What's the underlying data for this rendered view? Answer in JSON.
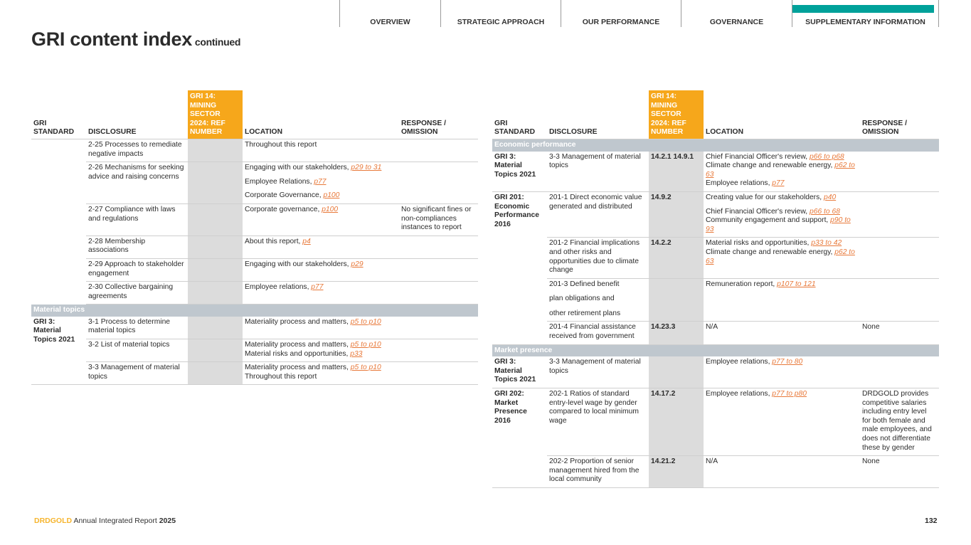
{
  "nav": {
    "items": [
      {
        "label": "OVERVIEW",
        "active": false
      },
      {
        "label": "STRATEGIC APPROACH",
        "active": false
      },
      {
        "label": "OUR PERFORMANCE",
        "active": false
      },
      {
        "label": "GOVERNANCE",
        "active": false
      },
      {
        "label": "SUPPLEMENTARY INFORMATION",
        "active": true
      }
    ],
    "active_color": "#00a19a"
  },
  "title": {
    "main": "GRI content index",
    "suffix": "continued"
  },
  "colors": {
    "ref_header": "#f6a71b",
    "ref_column": "#dcdcdc",
    "section": "#bfc7ce",
    "link": "#e8793a"
  },
  "columns": [
    "GRI STANDARD",
    "DISCLOSURE",
    "GRI 14: MINING SECTOR 2024: REF NUMBER",
    "LOCATION",
    "RESPONSE / OMISSION"
  ],
  "left_table": {
    "rows": [
      {
        "std": "",
        "disclosure": [
          "2-25 Processes to remediate negative impacts"
        ],
        "ref": "",
        "location": [
          [
            {
              "t": "Throughout this report"
            }
          ]
        ],
        "response": ""
      },
      {
        "disclosure": [
          "2-26 Mechanisms for seeking advice and raising concerns"
        ],
        "ref": "",
        "location": [
          [
            {
              "t": "Engaging with our stakeholders, "
            },
            {
              "l": "p29 to 31"
            }
          ],
          [
            {
              "t": "Employee Relations, "
            },
            {
              "l": "p77"
            }
          ],
          [
            {
              "t": "Corporate Governance, "
            },
            {
              "l": "p100"
            }
          ]
        ],
        "response": ""
      },
      {
        "disclosure": [
          "2-27 Compliance with laws and regulations"
        ],
        "ref": "",
        "location": [
          [
            {
              "t": "Corporate governance, "
            },
            {
              "l": "p100"
            }
          ]
        ],
        "response": "No significant fines or non-compliances instances to report"
      },
      {
        "disclosure": [
          "2-28 Membership associations"
        ],
        "ref": "",
        "location": [
          [
            {
              "t": "About this report, "
            },
            {
              "l": "p4"
            }
          ]
        ],
        "response": ""
      },
      {
        "disclosure": [
          "2-29 Approach to stakeholder engagement"
        ],
        "ref": "",
        "location": [
          [
            {
              "t": "Engaging with our stakeholders, "
            },
            {
              "l": "p29"
            }
          ]
        ],
        "response": ""
      },
      {
        "disclosure": [
          "2-30 Collective bargaining agreements"
        ],
        "ref": "",
        "location": [
          [
            {
              "t": "Employee relations, "
            },
            {
              "l": "p77"
            }
          ]
        ],
        "response": ""
      },
      {
        "section": "Material topics"
      },
      {
        "std": "GRI 3: Material Topics 2021",
        "span": 3,
        "disclosure": [
          "3-1 Process to determine material topics"
        ],
        "ref": "",
        "location": [
          [
            {
              "t": "Materiality process and matters, "
            },
            {
              "l": "p5 to p10"
            }
          ]
        ],
        "response": ""
      },
      {
        "disclosure": [
          "3-2 List of material topics"
        ],
        "ref": "",
        "location": [
          [
            {
              "t": "Materiality process and matters, "
            },
            {
              "l": "p5 to p10"
            },
            {
              "br": true
            },
            {
              "t": "Material risks and opportunities, "
            },
            {
              "l": "p33"
            }
          ]
        ],
        "response": ""
      },
      {
        "disclosure": [
          "3-3 Management of material topics"
        ],
        "ref": "",
        "location": [
          [
            {
              "t": "Materiality process and matters, "
            },
            {
              "l": "p5 to p10"
            },
            {
              "br": true
            },
            {
              "t": "Throughout this report"
            }
          ]
        ],
        "response": ""
      }
    ]
  },
  "right_table": {
    "rows": [
      {
        "section": "Economic performance"
      },
      {
        "std": "GRI 3: Material Topics 2021",
        "span": 1,
        "disclosure": [
          "3-3 Management of material topics"
        ],
        "ref": "14.2.1 14.9.1",
        "location": [
          [
            {
              "t": "Chief Financial Officer's review, "
            },
            {
              "l": "p66 to p68"
            },
            {
              "br": true
            },
            {
              "t": "Climate change and renewable energy, "
            },
            {
              "l": "p62 to 63"
            },
            {
              "br": true
            },
            {
              "t": "Employee relations, "
            },
            {
              "l": "p77"
            }
          ]
        ],
        "response": ""
      },
      {
        "std": "GRI 201: Economic Performance 2016",
        "span": 4,
        "disclosure": [
          "201-1 Direct economic value generated and distributed"
        ],
        "ref": "14.9.2",
        "location": [
          [
            {
              "t": "Creating value for our stakeholders, "
            },
            {
              "l": "p40"
            }
          ],
          [
            {
              "t": "Chief Financial Officer's review, "
            },
            {
              "l": "p66 to 68"
            },
            {
              "br": true
            },
            {
              "t": "Community engagement and support, "
            },
            {
              "l": "p90 to 93"
            }
          ]
        ],
        "response": ""
      },
      {
        "disclosure": [
          "201-2 Financial implications and other risks and opportunities due to climate change"
        ],
        "ref": "14.2.2",
        "location": [
          [
            {
              "t": "Material risks and opportunities, "
            },
            {
              "l": "p33 to 42"
            },
            {
              "br": true
            },
            {
              "t": "Climate change and renewable energy, "
            },
            {
              "l": "p62 to 63"
            }
          ]
        ],
        "response": ""
      },
      {
        "disclosure": [
          "201-3 Defined benefit",
          "plan obligations and",
          "other retirement plans"
        ],
        "wide": true,
        "ref": "",
        "location": [
          [
            {
              "t": "Remuneration report, "
            },
            {
              "l": "p107 to 121"
            }
          ]
        ],
        "response": ""
      },
      {
        "disclosure": [
          "201-4 Financial assistance received from government"
        ],
        "ref": "14.23.3",
        "location": [
          [
            {
              "t": "N/A"
            }
          ]
        ],
        "response": "None"
      },
      {
        "section": "Market presence"
      },
      {
        "std": "GRI 3: Material Topics 2021",
        "span": 1,
        "disclosure": [
          "3-3 Management of material topics"
        ],
        "ref": "",
        "location": [
          [
            {
              "t": "Employee relations, "
            },
            {
              "l": "p77 to 80"
            }
          ]
        ],
        "response": ""
      },
      {
        "std": "GRI 202: Market Presence 2016",
        "span": 2,
        "disclosure": [
          "202-1 Ratios of standard entry-level wage by gender compared to local minimum wage"
        ],
        "ref": "14.17.2",
        "location": [
          [
            {
              "t": "Employee relations, "
            },
            {
              "l": "p77 to p80"
            }
          ]
        ],
        "response": "DRDGOLD provides competitive salaries including entry level for both female and male employees, and does not differentiate these by gender"
      },
      {
        "disclosure": [
          "202-2 Proportion of senior management hired from the local community"
        ],
        "ref": "14.21.2",
        "location": [
          [
            {
              "t": "N/A"
            }
          ]
        ],
        "response": "None"
      }
    ]
  },
  "footer": {
    "brand": "DRDGOLD",
    "text": "Annual Integrated Report",
    "year": "2025",
    "page": "132"
  }
}
